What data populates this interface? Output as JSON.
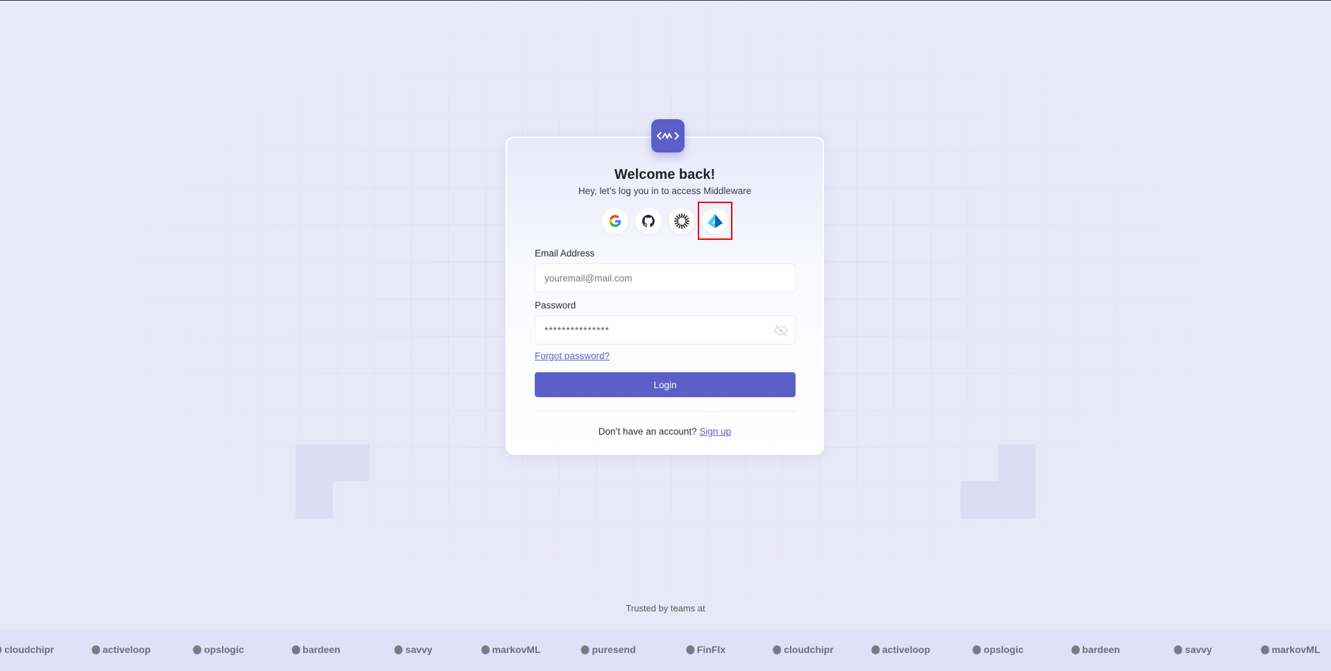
{
  "colors": {
    "accent": "#5b5fc7",
    "highlight": "#e00000"
  },
  "header": {
    "title": "Welcome back!",
    "subtitle": "Hey, let’s log you in to access Middleware"
  },
  "sso": [
    {
      "icon": "google-icon",
      "label": "Google"
    },
    {
      "icon": "github-icon",
      "label": "GitHub"
    },
    {
      "icon": "sunburst-icon",
      "label": "SSO"
    },
    {
      "icon": "azure-icon",
      "label": "Microsoft Azure"
    }
  ],
  "form": {
    "email_label": "Email Address",
    "email_placeholder": "youremail@mail.com",
    "password_label": "Password",
    "password_value": "***************",
    "forgot": "Forgot password?",
    "login": "Login",
    "signup_prompt": "Don’t have an account?",
    "signup_link": "Sign up"
  },
  "footer": {
    "trusted": "Trusted by teams at",
    "brands": [
      "cloudchipr",
      "activeloop",
      "opslogic",
      "bardeen",
      "savvy",
      "markovML",
      "puresend",
      "FinFlx",
      "cloudchipr",
      "activeloop",
      "opslogic",
      "bardeen",
      "savvy",
      "markovML"
    ]
  }
}
